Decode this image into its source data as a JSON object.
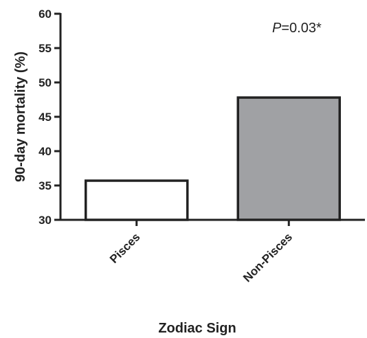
{
  "chart_data": {
    "type": "bar",
    "categories": [
      "Pisces",
      "Non-Pisces"
    ],
    "values": [
      35.7,
      47.8
    ],
    "bar_colors": [
      "#ffffff",
      "#a0a1a4"
    ],
    "xlabel": "Zodiac Sign",
    "ylabel": "90-day mortality (%)",
    "ylim": [
      30,
      60
    ],
    "yticks": [
      30,
      35,
      40,
      45,
      50,
      55,
      60
    ],
    "grid": false,
    "annotation": {
      "p_symbol": "P",
      "p_text": "=0.03*",
      "placement": "top-right"
    }
  }
}
